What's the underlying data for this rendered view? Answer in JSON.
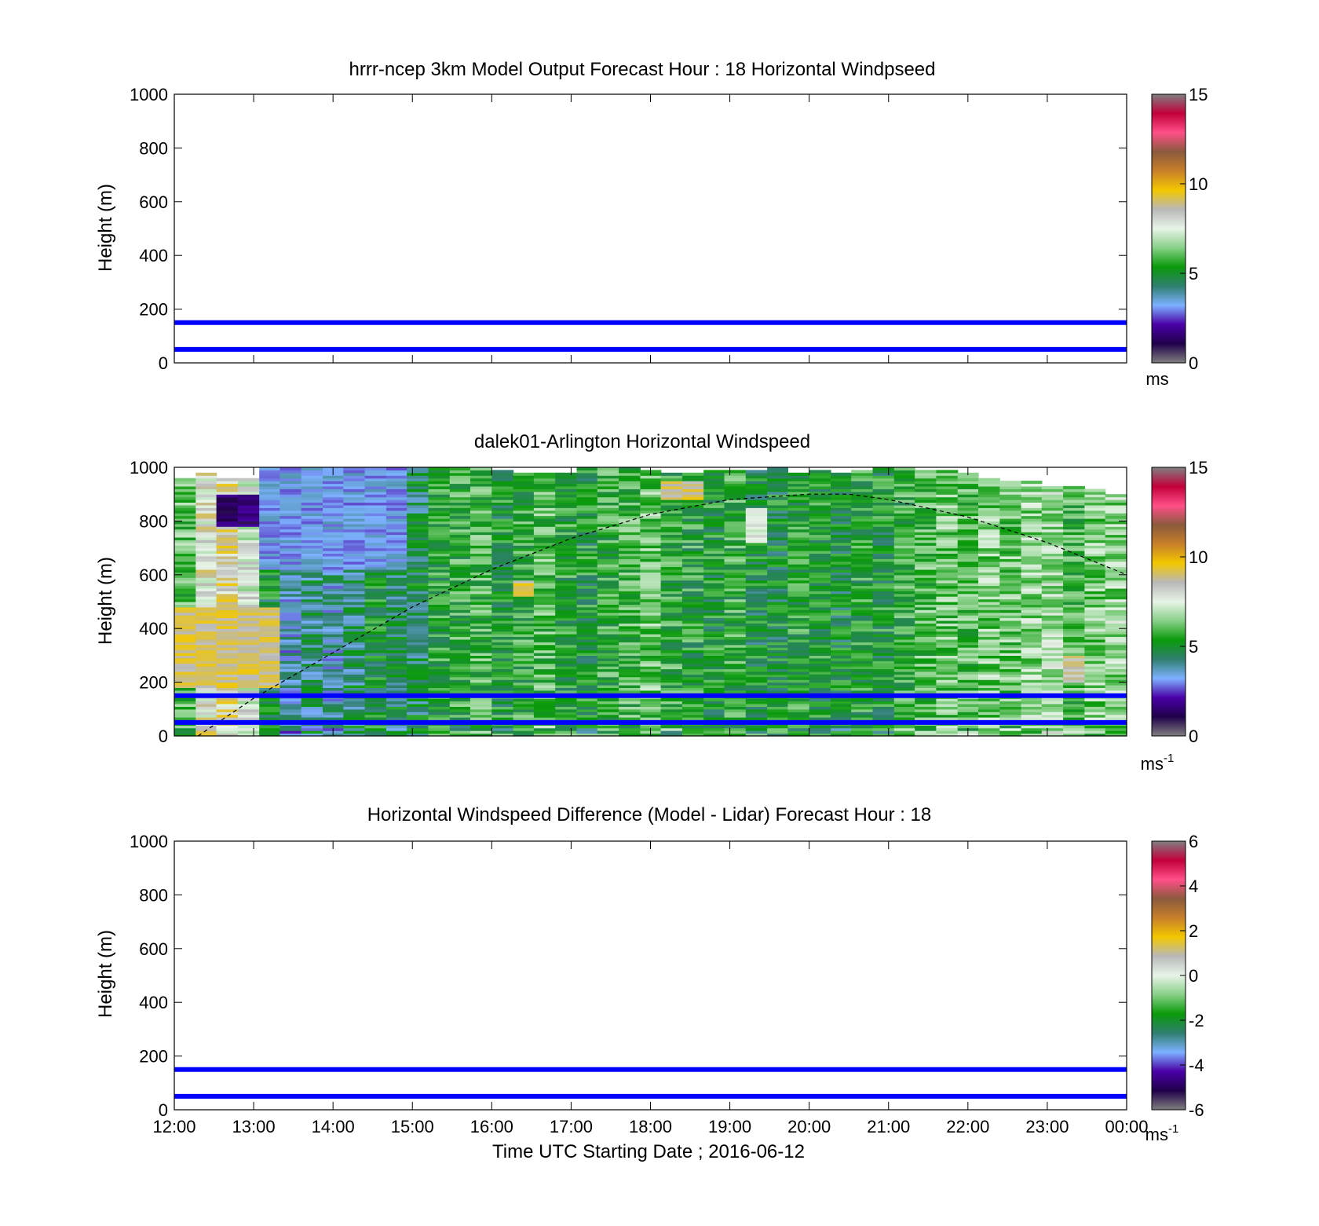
{
  "figure": {
    "xlabel": "Time UTC  Starting Date ; 2016-06-12",
    "x_tick_labels": [
      "12:00",
      "13:00",
      "14:00",
      "15:00",
      "16:00",
      "17:00",
      "18:00",
      "19:00",
      "20:00",
      "21:00",
      "22:00",
      "23:00",
      "00:00"
    ]
  },
  "colors": {
    "overlay_lines": "#0000ff",
    "dashed_line": "#000000",
    "colormap": [
      "#7f7f7f",
      "#20004a",
      "#4a00a8",
      "#7db1ff",
      "#2f7f6f",
      "#0a9a0a",
      "#88d088",
      "#e8f4e8",
      "#b8b8b8",
      "#f3c800",
      "#c87f2a",
      "#8b5a3c",
      "#ff4f88",
      "#c3003a",
      "#7f7f7f"
    ]
  },
  "chart_data": [
    {
      "type": "heatmap",
      "title": "hrrr-ncep 3km Model Output   Forecast Hour : 18 Horizontal Windpseed",
      "ylabel": "Height (m)",
      "xlim": [
        "12:00",
        "00:00"
      ],
      "ylim": [
        0,
        1000
      ],
      "y_ticks": [
        0,
        200,
        400,
        600,
        800,
        1000
      ],
      "overlay_lines_m": [
        50,
        150
      ],
      "colorbar": {
        "range": [
          0,
          15
        ],
        "ticks": [
          0,
          5,
          10,
          15
        ],
        "unit": "ms",
        "unit_sup": ""
      },
      "grid": false
    },
    {
      "type": "heatmap",
      "title": "dalek01-Arlington  Horizontal Windspeed",
      "ylabel": "Height (m)",
      "xlim": [
        "12:00",
        "00:00"
      ],
      "ylim": [
        0,
        1000
      ],
      "y_ticks": [
        0,
        200,
        400,
        600,
        800,
        1000
      ],
      "overlay_lines_m": [
        50,
        150
      ],
      "colorbar": {
        "range": [
          0,
          15
        ],
        "ticks": [
          0,
          5,
          10,
          15
        ],
        "unit": "ms",
        "unit_sup": "-1"
      },
      "dashed_curve": {
        "x_hours": [
          12.3,
          13.0,
          14.0,
          15.0,
          16.0,
          17.0,
          18.0,
          19.0,
          20.0,
          20.5,
          21.0,
          22.0,
          23.0,
          24.0
        ],
        "y_m": [
          0,
          140,
          310,
          480,
          620,
          735,
          825,
          880,
          900,
          900,
          880,
          815,
          720,
          600
        ]
      },
      "column_hours": [
        12.0,
        12.27,
        12.53,
        12.8,
        13.07,
        13.33,
        13.6,
        13.87,
        14.13,
        14.4,
        14.67,
        14.93,
        15.2,
        15.47,
        15.73,
        16.0,
        16.27,
        16.53,
        16.8,
        17.07,
        17.33,
        17.6,
        17.87,
        18.13,
        18.4,
        18.67,
        18.93,
        19.2,
        19.47,
        19.73,
        20.0,
        20.27,
        20.53,
        20.8,
        21.07,
        21.33,
        21.6,
        21.87,
        22.13,
        22.4,
        22.67,
        22.93,
        23.2,
        23.47,
        23.73
      ],
      "column_top_m": [
        960,
        980,
        960,
        960,
        1000,
        1000,
        1000,
        1000,
        1000,
        1000,
        1000,
        1000,
        1000,
        1000,
        1000,
        990,
        980,
        980,
        980,
        1000,
        1000,
        1000,
        990,
        980,
        980,
        990,
        990,
        990,
        1000,
        980,
        990,
        980,
        990,
        1000,
        1000,
        990,
        990,
        980,
        960,
        950,
        950,
        930,
        930,
        920,
        900
      ],
      "column_mean_ms": [
        6.0,
        8.0,
        8.5,
        7.5,
        5.0,
        3.6,
        4.2,
        3.8,
        4.4,
        5.0,
        4.6,
        4.6,
        5.4,
        5.6,
        5.8,
        5.2,
        5.6,
        6.0,
        5.4,
        5.2,
        5.6,
        5.8,
        6.2,
        5.6,
        5.4,
        5.2,
        5.6,
        5.0,
        5.0,
        5.4,
        5.2,
        5.0,
        5.4,
        5.2,
        5.6,
        6.0,
        6.2,
        6.0,
        6.4,
        6.2,
        6.6,
        6.8,
        5.8,
        6.4,
        6.6
      ],
      "regions": [
        {
          "h0": 12.0,
          "h1": 13.3,
          "z0": 180,
          "z1": 480,
          "value_ms": 9.0
        },
        {
          "h0": 13.0,
          "h1": 14.9,
          "z0": 620,
          "z1": 1000,
          "value_ms": 3.2
        },
        {
          "h0": 12.5,
          "h1": 13.0,
          "z0": 780,
          "z1": 900,
          "value_ms": 1.5
        },
        {
          "h0": 16.2,
          "h1": 16.5,
          "z0": 520,
          "z1": 580,
          "value_ms": 9.0
        },
        {
          "h0": 18.0,
          "h1": 18.6,
          "z0": 880,
          "z1": 950,
          "value_ms": 9.0
        },
        {
          "h0": 19.0,
          "h1": 19.3,
          "z0": 720,
          "z1": 850,
          "value_ms": 7.5
        },
        {
          "h0": 23.0,
          "h1": 23.3,
          "z0": 200,
          "z1": 300,
          "value_ms": 8.5
        }
      ],
      "grid": false
    },
    {
      "type": "heatmap",
      "title": "Horizontal Windspeed Difference (Model - Lidar) Forecast Hour : 18",
      "ylabel": "Height (m)",
      "xlim": [
        "12:00",
        "00:00"
      ],
      "ylim": [
        0,
        1000
      ],
      "y_ticks": [
        0,
        200,
        400,
        600,
        800,
        1000
      ],
      "overlay_lines_m": [
        50,
        150
      ],
      "colorbar": {
        "range": [
          -6,
          6
        ],
        "ticks": [
          -6,
          -4,
          -2,
          0,
          2,
          4,
          6
        ],
        "unit": "ms",
        "unit_sup": "-1"
      },
      "grid": false
    }
  ]
}
